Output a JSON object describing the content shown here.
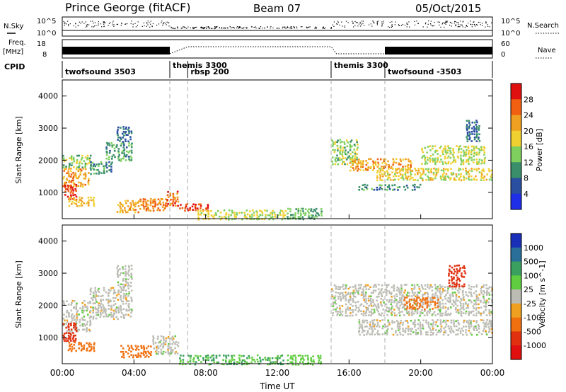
{
  "header": {
    "station": "Prince George (fitACF)",
    "beam": "Beam 07",
    "date": "05/Oct/2015"
  },
  "top_panels": {
    "nsky_label": "N.Sky",
    "nsearch_label": "N.Search",
    "noise_ticks": [
      "10^5",
      "10^0"
    ],
    "freq_label": "Freq.",
    "freq_unit": "[MHz]",
    "freq_ticks": [
      "18",
      "8"
    ],
    "nave_ticks": [
      "60",
      "0"
    ],
    "nave_label": "Nave",
    "cpid_label": "CPID"
  },
  "chart_data": [
    {
      "type": "heatmap",
      "panel": "Power",
      "ylabel": "Slant Range [km]",
      "xlabel": "",
      "ylim": [
        180,
        4500
      ],
      "yticks": [
        1000,
        2000,
        3000,
        4000
      ],
      "colorbar": {
        "label": "Power [dB]",
        "range": [
          0,
          32
        ],
        "ticks": [
          4,
          8,
          12,
          16,
          20,
          24,
          28
        ]
      },
      "regions": [
        {
          "t0": 0.0,
          "t1": 1.6,
          "r0": 1800,
          "r1": 2200,
          "value": 14
        },
        {
          "t0": 0.0,
          "t1": 1.5,
          "r0": 1200,
          "r1": 1800,
          "value": 22
        },
        {
          "t0": 0.1,
          "t1": 0.8,
          "r0": 800,
          "r1": 1300,
          "value": 28
        },
        {
          "t0": 0.3,
          "t1": 1.8,
          "r0": 600,
          "r1": 900,
          "value": 20
        },
        {
          "t0": 1.5,
          "t1": 2.8,
          "r0": 1600,
          "r1": 2000,
          "value": 10
        },
        {
          "t0": 2.4,
          "t1": 3.9,
          "r0": 2000,
          "r1": 2600,
          "value": 11
        },
        {
          "t0": 3.0,
          "t1": 3.9,
          "r0": 2600,
          "r1": 3100,
          "value": 8
        },
        {
          "t0": 3.0,
          "t1": 4.3,
          "r0": 400,
          "r1": 800,
          "value": 21
        },
        {
          "t0": 4.3,
          "t1": 5.8,
          "r0": 450,
          "r1": 850,
          "value": 24
        },
        {
          "t0": 5.8,
          "t1": 6.5,
          "r0": 600,
          "r1": 1100,
          "value": 25
        },
        {
          "t0": 6.5,
          "t1": 8.2,
          "r0": 450,
          "r1": 700,
          "value": 29
        },
        {
          "t0": 7.5,
          "t1": 12.5,
          "r0": 180,
          "r1": 500,
          "value": 16
        },
        {
          "t0": 12.5,
          "t1": 14.5,
          "r0": 180,
          "r1": 550,
          "value": 12
        },
        {
          "t0": 15.0,
          "t1": 16.5,
          "r0": 1900,
          "r1": 2700,
          "value": 14
        },
        {
          "t0": 16.0,
          "t1": 19.5,
          "r0": 1700,
          "r1": 2100,
          "value": 22
        },
        {
          "t0": 17.5,
          "t1": 24.0,
          "r0": 1400,
          "r1": 1800,
          "value": 18
        },
        {
          "t0": 16.5,
          "t1": 20.0,
          "r0": 1100,
          "r1": 1300,
          "value": 10
        },
        {
          "t0": 20.0,
          "t1": 23.6,
          "r0": 1900,
          "r1": 2500,
          "value": 16
        },
        {
          "t0": 22.5,
          "t1": 23.3,
          "r0": 2600,
          "r1": 3300,
          "value": 8
        }
      ]
    },
    {
      "type": "heatmap",
      "panel": "Velocity",
      "ylabel": "Slant Range [km]",
      "xlabel": "Time UT",
      "ylim": [
        180,
        4500
      ],
      "yticks": [
        1000,
        2000,
        3000,
        4000
      ],
      "x_ticks": [
        "00:00",
        "04:00",
        "08:00",
        "12:00",
        "16:00",
        "20:00",
        "00:00"
      ],
      "colorbar": {
        "label": "Velocity [m s^-1]",
        "ticks": [
          "1000",
          "500",
          "100",
          "25",
          "-25",
          "-100",
          "-500",
          "-1000"
        ]
      },
      "regions": [
        {
          "t0": 0.0,
          "t1": 1.6,
          "r0": 1200,
          "r1": 2200,
          "value": 0
        },
        {
          "t0": 0.0,
          "t1": 0.8,
          "r0": 900,
          "r1": 1500,
          "value": -800
        },
        {
          "t0": 0.3,
          "t1": 1.8,
          "r0": 600,
          "r1": 900,
          "value": -300
        },
        {
          "t0": 1.5,
          "t1": 3.9,
          "r0": 1600,
          "r1": 2600,
          "value": 0
        },
        {
          "t0": 3.0,
          "t1": 3.9,
          "r0": 2600,
          "r1": 3300,
          "value": 0
        },
        {
          "t0": 3.2,
          "t1": 5.0,
          "r0": 400,
          "r1": 800,
          "value": -300
        },
        {
          "t0": 5.0,
          "t1": 6.5,
          "r0": 500,
          "r1": 1100,
          "value": 0
        },
        {
          "t0": 6.5,
          "t1": 12.5,
          "r0": 180,
          "r1": 500,
          "value": 100
        },
        {
          "t0": 12.5,
          "t1": 14.5,
          "r0": 180,
          "r1": 500,
          "value": 60
        },
        {
          "t0": 15.0,
          "t1": 24.0,
          "r0": 1700,
          "r1": 2700,
          "value": 0
        },
        {
          "t0": 16.5,
          "t1": 24.0,
          "r0": 1100,
          "r1": 1600,
          "value": 0
        },
        {
          "t0": 19.0,
          "t1": 21.0,
          "r0": 1900,
          "r1": 2300,
          "value": -300
        },
        {
          "t0": 21.5,
          "t1": 22.5,
          "r0": 2600,
          "r1": 3300,
          "value": -700
        }
      ]
    }
  ],
  "cpid_segments": [
    {
      "label": "twofsound 3503",
      "start": 0.0
    },
    {
      "label": "themis 3300",
      "start": 6.0
    },
    {
      "label": "rbsp 200",
      "start": 7.0
    },
    {
      "label": "themis 3300",
      "start": 15.0
    },
    {
      "label": "twofsound -3503",
      "start": 18.0
    }
  ],
  "colors": {
    "power": [
      "#1f2fe8",
      "#2a4fa0",
      "#3a8f6a",
      "#7fcf5f",
      "#f0d030",
      "#f0a020",
      "#f06010",
      "#e01010"
    ],
    "velocity": [
      "#1a2fb8",
      "#2a6f9a",
      "#3aa060",
      "#60cc40",
      "#bcbcb4",
      "#f0a020",
      "#f07010",
      "#e03010",
      "#e01010"
    ]
  }
}
